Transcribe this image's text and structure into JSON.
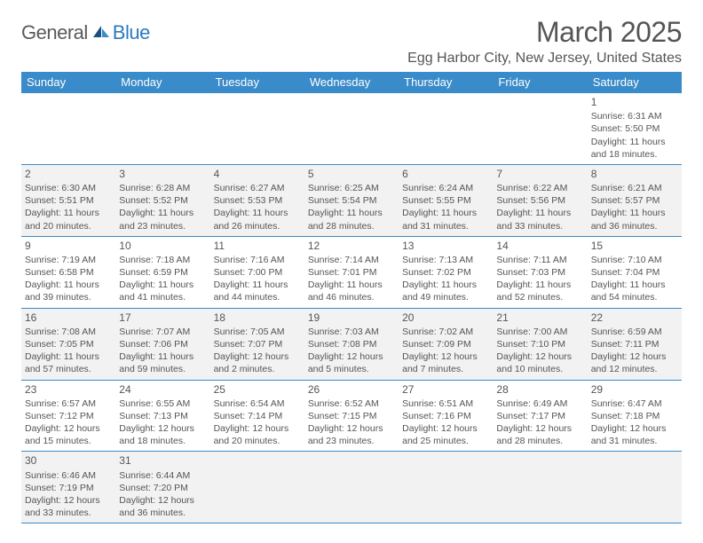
{
  "brand": {
    "general": "General",
    "blue": "Blue"
  },
  "title": "March 2025",
  "location": "Egg Harbor City, New Jersey, United States",
  "colors": {
    "header_bg": "#3a8bc9",
    "header_text": "#ffffff",
    "row_alt_bg": "#f2f2f2",
    "text": "#555555",
    "border": "#3a8bc9",
    "brand_gray": "#5a5a5a",
    "brand_blue": "#2b7bbf"
  },
  "typography": {
    "title_fontsize": 32,
    "location_fontsize": 16,
    "dayheader_fontsize": 13,
    "cell_fontsize": 10.5
  },
  "day_headers": [
    "Sunday",
    "Monday",
    "Tuesday",
    "Wednesday",
    "Thursday",
    "Friday",
    "Saturday"
  ],
  "weeks": [
    [
      null,
      null,
      null,
      null,
      null,
      null,
      {
        "n": "1",
        "sr": "Sunrise: 6:31 AM",
        "ss": "Sunset: 5:50 PM",
        "d1": "Daylight: 11 hours",
        "d2": "and 18 minutes."
      }
    ],
    [
      {
        "n": "2",
        "sr": "Sunrise: 6:30 AM",
        "ss": "Sunset: 5:51 PM",
        "d1": "Daylight: 11 hours",
        "d2": "and 20 minutes."
      },
      {
        "n": "3",
        "sr": "Sunrise: 6:28 AM",
        "ss": "Sunset: 5:52 PM",
        "d1": "Daylight: 11 hours",
        "d2": "and 23 minutes."
      },
      {
        "n": "4",
        "sr": "Sunrise: 6:27 AM",
        "ss": "Sunset: 5:53 PM",
        "d1": "Daylight: 11 hours",
        "d2": "and 26 minutes."
      },
      {
        "n": "5",
        "sr": "Sunrise: 6:25 AM",
        "ss": "Sunset: 5:54 PM",
        "d1": "Daylight: 11 hours",
        "d2": "and 28 minutes."
      },
      {
        "n": "6",
        "sr": "Sunrise: 6:24 AM",
        "ss": "Sunset: 5:55 PM",
        "d1": "Daylight: 11 hours",
        "d2": "and 31 minutes."
      },
      {
        "n": "7",
        "sr": "Sunrise: 6:22 AM",
        "ss": "Sunset: 5:56 PM",
        "d1": "Daylight: 11 hours",
        "d2": "and 33 minutes."
      },
      {
        "n": "8",
        "sr": "Sunrise: 6:21 AM",
        "ss": "Sunset: 5:57 PM",
        "d1": "Daylight: 11 hours",
        "d2": "and 36 minutes."
      }
    ],
    [
      {
        "n": "9",
        "sr": "Sunrise: 7:19 AM",
        "ss": "Sunset: 6:58 PM",
        "d1": "Daylight: 11 hours",
        "d2": "and 39 minutes."
      },
      {
        "n": "10",
        "sr": "Sunrise: 7:18 AM",
        "ss": "Sunset: 6:59 PM",
        "d1": "Daylight: 11 hours",
        "d2": "and 41 minutes."
      },
      {
        "n": "11",
        "sr": "Sunrise: 7:16 AM",
        "ss": "Sunset: 7:00 PM",
        "d1": "Daylight: 11 hours",
        "d2": "and 44 minutes."
      },
      {
        "n": "12",
        "sr": "Sunrise: 7:14 AM",
        "ss": "Sunset: 7:01 PM",
        "d1": "Daylight: 11 hours",
        "d2": "and 46 minutes."
      },
      {
        "n": "13",
        "sr": "Sunrise: 7:13 AM",
        "ss": "Sunset: 7:02 PM",
        "d1": "Daylight: 11 hours",
        "d2": "and 49 minutes."
      },
      {
        "n": "14",
        "sr": "Sunrise: 7:11 AM",
        "ss": "Sunset: 7:03 PM",
        "d1": "Daylight: 11 hours",
        "d2": "and 52 minutes."
      },
      {
        "n": "15",
        "sr": "Sunrise: 7:10 AM",
        "ss": "Sunset: 7:04 PM",
        "d1": "Daylight: 11 hours",
        "d2": "and 54 minutes."
      }
    ],
    [
      {
        "n": "16",
        "sr": "Sunrise: 7:08 AM",
        "ss": "Sunset: 7:05 PM",
        "d1": "Daylight: 11 hours",
        "d2": "and 57 minutes."
      },
      {
        "n": "17",
        "sr": "Sunrise: 7:07 AM",
        "ss": "Sunset: 7:06 PM",
        "d1": "Daylight: 11 hours",
        "d2": "and 59 minutes."
      },
      {
        "n": "18",
        "sr": "Sunrise: 7:05 AM",
        "ss": "Sunset: 7:07 PM",
        "d1": "Daylight: 12 hours",
        "d2": "and 2 minutes."
      },
      {
        "n": "19",
        "sr": "Sunrise: 7:03 AM",
        "ss": "Sunset: 7:08 PM",
        "d1": "Daylight: 12 hours",
        "d2": "and 5 minutes."
      },
      {
        "n": "20",
        "sr": "Sunrise: 7:02 AM",
        "ss": "Sunset: 7:09 PM",
        "d1": "Daylight: 12 hours",
        "d2": "and 7 minutes."
      },
      {
        "n": "21",
        "sr": "Sunrise: 7:00 AM",
        "ss": "Sunset: 7:10 PM",
        "d1": "Daylight: 12 hours",
        "d2": "and 10 minutes."
      },
      {
        "n": "22",
        "sr": "Sunrise: 6:59 AM",
        "ss": "Sunset: 7:11 PM",
        "d1": "Daylight: 12 hours",
        "d2": "and 12 minutes."
      }
    ],
    [
      {
        "n": "23",
        "sr": "Sunrise: 6:57 AM",
        "ss": "Sunset: 7:12 PM",
        "d1": "Daylight: 12 hours",
        "d2": "and 15 minutes."
      },
      {
        "n": "24",
        "sr": "Sunrise: 6:55 AM",
        "ss": "Sunset: 7:13 PM",
        "d1": "Daylight: 12 hours",
        "d2": "and 18 minutes."
      },
      {
        "n": "25",
        "sr": "Sunrise: 6:54 AM",
        "ss": "Sunset: 7:14 PM",
        "d1": "Daylight: 12 hours",
        "d2": "and 20 minutes."
      },
      {
        "n": "26",
        "sr": "Sunrise: 6:52 AM",
        "ss": "Sunset: 7:15 PM",
        "d1": "Daylight: 12 hours",
        "d2": "and 23 minutes."
      },
      {
        "n": "27",
        "sr": "Sunrise: 6:51 AM",
        "ss": "Sunset: 7:16 PM",
        "d1": "Daylight: 12 hours",
        "d2": "and 25 minutes."
      },
      {
        "n": "28",
        "sr": "Sunrise: 6:49 AM",
        "ss": "Sunset: 7:17 PM",
        "d1": "Daylight: 12 hours",
        "d2": "and 28 minutes."
      },
      {
        "n": "29",
        "sr": "Sunrise: 6:47 AM",
        "ss": "Sunset: 7:18 PM",
        "d1": "Daylight: 12 hours",
        "d2": "and 31 minutes."
      }
    ],
    [
      {
        "n": "30",
        "sr": "Sunrise: 6:46 AM",
        "ss": "Sunset: 7:19 PM",
        "d1": "Daylight: 12 hours",
        "d2": "and 33 minutes."
      },
      {
        "n": "31",
        "sr": "Sunrise: 6:44 AM",
        "ss": "Sunset: 7:20 PM",
        "d1": "Daylight: 12 hours",
        "d2": "and 36 minutes."
      },
      null,
      null,
      null,
      null,
      null
    ]
  ]
}
